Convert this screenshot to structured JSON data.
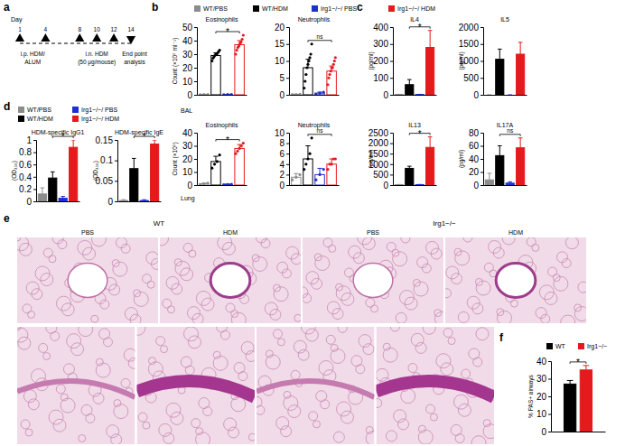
{
  "panels": [
    "a",
    "b",
    "c",
    "d",
    "e",
    "f"
  ],
  "rows": [
    "BAL",
    "Lung"
  ],
  "legend": [
    {
      "name": "WT/PBS",
      "color": "#8c8c8c"
    },
    {
      "name": "WT/HDM",
      "color": "#000000"
    },
    {
      "name": "Irg1−/−/ PBS",
      "color": "#1f2fcf"
    },
    {
      "name": "Irg1−/−/ HDM",
      "color": "#e41a1c"
    }
  ],
  "schematic": {
    "axis_label": "Day",
    "xlim": [
      1,
      14
    ],
    "days": [
      1,
      4,
      8,
      10,
      12,
      14
    ],
    "markers": [
      "up",
      "up",
      "up",
      "up",
      "up",
      "down"
    ],
    "ip_label": [
      "i.p. HDM/",
      "ALUM"
    ],
    "in_label": [
      "i.n. HDM",
      "(50 μg/mouse)"
    ],
    "end_label": [
      "End point",
      "analysis"
    ]
  },
  "histology": {
    "groups": [
      "WT",
      "Irg1−/−"
    ],
    "conditions": [
      "PBS",
      "HDM",
      "PBS",
      "HDM"
    ]
  },
  "chart_data": [
    {
      "type": "bar",
      "title": "Eosinophils",
      "ylabel": "Count (×10⁵ ml⁻¹)",
      "categories": [
        null,
        null,
        null,
        null
      ],
      "values": [
        0.2,
        29,
        0.2,
        37
      ],
      "errors": [
        0.1,
        2,
        0.1,
        3
      ],
      "colors": [
        "#8c8c8c",
        "#000000",
        "#1f2fcf",
        "#e41a1c"
      ],
      "points": [
        [
          0.1,
          0.2,
          0.3
        ],
        [
          25,
          27,
          28,
          29,
          30,
          30,
          31,
          32,
          33
        ],
        [
          0.1,
          0.2,
          0.3
        ],
        [
          30,
          33,
          35,
          36,
          38,
          39,
          41,
          44
        ]
      ],
      "ylim": [
        0,
        50
      ],
      "yticks": [
        0,
        10,
        20,
        30,
        40,
        50
      ],
      "annotation": "*"
    },
    {
      "type": "bar",
      "title": "Neutrophils",
      "categories": [
        null,
        null,
        null,
        null
      ],
      "values": [
        0.1,
        8,
        0.5,
        7
      ],
      "errors": [
        0.05,
        2.5,
        0.3,
        1.5
      ],
      "colors": [
        "#8c8c8c",
        "#000000",
        "#1f2fcf",
        "#e41a1c"
      ],
      "points": [
        [
          0.1,
          0.1,
          0.2
        ],
        [
          2,
          4,
          6,
          8,
          9,
          10,
          11,
          12,
          15
        ],
        [
          0.2,
          0.5,
          0.8
        ],
        [
          3,
          5,
          6,
          7,
          8,
          8,
          9,
          10,
          11
        ]
      ],
      "ylim": [
        0,
        20
      ],
      "yticks": [
        0,
        5,
        10,
        15,
        20
      ],
      "annotation": "ns"
    },
    {
      "type": "bar",
      "title": "Eosinophils",
      "ylabel": "Count (×10⁵)",
      "categories": [
        null,
        null,
        null,
        null
      ],
      "values": [
        1,
        18,
        0.5,
        28
      ],
      "errors": [
        0.5,
        4,
        0.3,
        3
      ],
      "colors": [
        "#8c8c8c",
        "#000000",
        "#1f2fcf",
        "#e41a1c"
      ],
      "points": [
        [
          0.5,
          1,
          1.5
        ],
        [
          13,
          16,
          18,
          23
        ],
        [
          0.3,
          0.5,
          0.7
        ],
        [
          24,
          26,
          28,
          30,
          32
        ]
      ],
      "ylim": [
        0,
        40
      ],
      "yticks": [
        0,
        10,
        20,
        30,
        40
      ],
      "annotation": "*"
    },
    {
      "type": "bar",
      "title": "Neutrophils",
      "categories": [
        null,
        null,
        null,
        null
      ],
      "values": [
        1.5,
        5,
        2,
        4
      ],
      "errors": [
        0.7,
        2.5,
        1.2,
        1
      ],
      "colors": [
        "#8c8c8c",
        "#000000",
        "#1f2fcf",
        "#e41a1c"
      ],
      "points": [
        [
          1,
          1.5,
          2
        ],
        [
          3,
          4,
          5,
          6,
          9
        ],
        [
          1,
          2,
          3
        ],
        [
          3,
          4,
          4,
          5,
          5
        ]
      ],
      "ylim": [
        0,
        10
      ],
      "yticks": [
        0,
        2,
        4,
        6,
        8,
        10
      ],
      "annotation": "ns"
    },
    {
      "type": "bar",
      "title": "IL4",
      "ylabel": "(pg/ml)",
      "categories": [
        null,
        null,
        null,
        null
      ],
      "values": [
        2,
        60,
        2,
        280
      ],
      "errors": [
        1,
        30,
        1,
        100
      ],
      "colors": [
        "#8c8c8c",
        "#000000",
        "#1f2fcf",
        "#e41a1c"
      ],
      "ylim": [
        0,
        400
      ],
      "yticks": [
        0,
        100,
        200,
        300,
        400
      ],
      "annotation": "*"
    },
    {
      "type": "bar",
      "title": "IL5",
      "ylabel": "(pg/ml)",
      "categories": [
        null,
        null,
        null,
        null
      ],
      "values": [
        0,
        1050,
        0,
        1200
      ],
      "errors": [
        0,
        300,
        0,
        350
      ],
      "colors": [
        "#8c8c8c",
        "#000000",
        "#1f2fcf",
        "#e41a1c"
      ],
      "ylim": [
        0,
        2000
      ],
      "yticks": [
        0,
        500,
        1000,
        1500,
        2000
      ]
    },
    {
      "type": "bar",
      "title": "IL13",
      "ylabel": "(pg/ml)",
      "categories": [
        null,
        null,
        null,
        null
      ],
      "values": [
        20,
        800,
        20,
        1800
      ],
      "errors": [
        10,
        100,
        10,
        500
      ],
      "colors": [
        "#8c8c8c",
        "#000000",
        "#1f2fcf",
        "#e41a1c"
      ],
      "ylim": [
        0,
        2500
      ],
      "yticks": [
        0,
        500,
        1000,
        1500,
        2000,
        2500
      ],
      "annotation": "*"
    },
    {
      "type": "bar",
      "title": "IL17A",
      "ylabel": "(pg/ml)",
      "categories": [
        null,
        null,
        null,
        null
      ],
      "values": [
        8,
        45,
        3,
        57
      ],
      "errors": [
        10,
        15,
        2,
        15
      ],
      "colors": [
        "#8c8c8c",
        "#000000",
        "#1f2fcf",
        "#e41a1c"
      ],
      "ylim": [
        0,
        80
      ],
      "yticks": [
        0,
        20,
        40,
        60,
        80
      ],
      "annotation": "ns"
    },
    {
      "type": "bar",
      "title": "HDM-specific IgG1",
      "ylabel": "(OD₄₅₀)",
      "categories": [
        null,
        null,
        null,
        null
      ],
      "values": [
        0.12,
        0.38,
        0.05,
        0.88
      ],
      "errors": [
        0.1,
        0.1,
        0.03,
        0.12
      ],
      "colors": [
        "#8c8c8c",
        "#000000",
        "#1f2fcf",
        "#e41a1c"
      ],
      "ylim": [
        0,
        1
      ],
      "yticks": [
        0,
        0.2,
        0.4,
        0.6,
        0.8,
        1
      ],
      "annotation": "*"
    },
    {
      "type": "bar",
      "title": "HDM-specific IgE",
      "ylabel": "(OD₄₅₀)",
      "categories": [
        null,
        null,
        null,
        null
      ],
      "values": [
        0.002,
        0.08,
        0.002,
        0.14
      ],
      "errors": [
        0.002,
        0.025,
        0.002,
        0.01
      ],
      "colors": [
        "#8c8c8c",
        "#000000",
        "#1f2fcf",
        "#e41a1c"
      ],
      "ylim": [
        0,
        0.15
      ],
      "yticks": [
        0,
        0.05,
        0.1,
        0.15
      ],
      "annotation": "*"
    },
    {
      "type": "bar",
      "ylabel": "% PAS+ airways",
      "categories": [
        null
      ],
      "series": [
        {
          "name": "WT",
          "color": "#000000",
          "values": [
            27
          ],
          "errors": [
            2
          ]
        },
        {
          "name": "Irg1−/−",
          "color": "#e41a1c",
          "values": [
            35
          ],
          "errors": [
            2.5
          ]
        }
      ],
      "ylim": [
        0,
        40
      ],
      "yticks": [
        0,
        10,
        20,
        30,
        40
      ],
      "annotation": "*"
    }
  ]
}
